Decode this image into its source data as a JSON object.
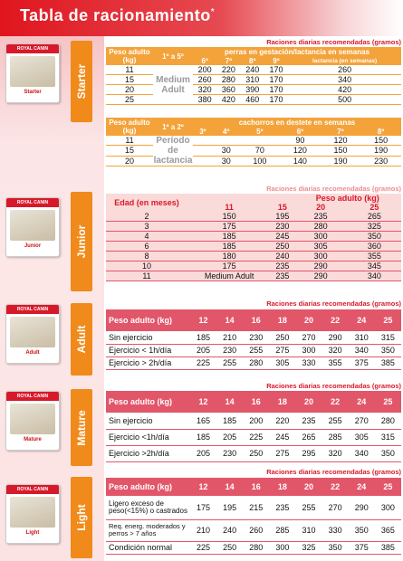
{
  "title": "Tabla de racionamiento",
  "title_mark": "*",
  "section_header": "Raciones diarias recomendadas (gramos)",
  "brand": "ROYAL CANIN",
  "products": [
    {
      "name": "Starter",
      "pack_label": "Starter"
    },
    {
      "name": "Junior",
      "pack_label": "Junior"
    },
    {
      "name": "Adult",
      "pack_label": "Adult"
    },
    {
      "name": "Mature",
      "pack_label": "Mature"
    },
    {
      "name": "Light",
      "pack_label": "Light"
    }
  ],
  "starter_table": {
    "col0": "Peso adulto (kg)",
    "col1": "1º a 5º",
    "group": "perras en gestación/lactancia en semanas",
    "subcols": [
      "6º",
      "7º",
      "8º",
      "9º",
      "lactancia (en semanas)"
    ],
    "middle_text": "Medium Adult",
    "rows": [
      {
        "w": "11",
        "v": [
          "200",
          "220",
          "240",
          "170",
          "260"
        ]
      },
      {
        "w": "15",
        "v": [
          "260",
          "280",
          "310",
          "170",
          "340"
        ]
      },
      {
        "w": "20",
        "v": [
          "320",
          "360",
          "390",
          "170",
          "420"
        ]
      },
      {
        "w": "25",
        "v": [
          "380",
          "420",
          "460",
          "170",
          "500"
        ]
      }
    ]
  },
  "starter_table2": {
    "col0": "Peso adulto (kg)",
    "col1": "1º a 2º",
    "group": "cachorros en destete en semanas",
    "subcols": [
      "3º",
      "4º",
      "5º",
      "6º",
      "7º",
      "8º"
    ],
    "middle_text": "Período de lactancia",
    "rows": [
      {
        "w": "11",
        "v": [
          "",
          "",
          "",
          "90",
          "120",
          "150"
        ]
      },
      {
        "w": "15",
        "v": [
          "",
          "30",
          "70",
          "120",
          "150",
          "190"
        ]
      },
      {
        "w": "20",
        "v": [
          "",
          "30",
          "100",
          "140",
          "190",
          "230"
        ]
      }
    ]
  },
  "junior_table": {
    "col0": "Edad (en meses)",
    "group": "Peso adulto (kg)",
    "subcols": [
      "11",
      "15",
      "20",
      "25"
    ],
    "rows": [
      {
        "a": "2",
        "v": [
          "150",
          "195",
          "235",
          "265"
        ]
      },
      {
        "a": "3",
        "v": [
          "175",
          "230",
          "280",
          "325"
        ]
      },
      {
        "a": "4",
        "v": [
          "185",
          "245",
          "300",
          "350"
        ]
      },
      {
        "a": "6",
        "v": [
          "185",
          "250",
          "305",
          "360"
        ]
      },
      {
        "a": "8",
        "v": [
          "180",
          "240",
          "300",
          "355"
        ]
      },
      {
        "a": "10",
        "v": [
          "175",
          "235",
          "290",
          "345"
        ]
      },
      {
        "a": "11",
        "v": [
          "Medium Adult",
          "235",
          "290",
          "340"
        ]
      }
    ]
  },
  "adult_table": {
    "col0": "Peso adulto (kg)",
    "cols": [
      "12",
      "14",
      "16",
      "18",
      "20",
      "22",
      "24",
      "25"
    ],
    "rows": [
      {
        "label": "Sin ejercicio",
        "v": [
          "185",
          "210",
          "230",
          "250",
          "270",
          "290",
          "310",
          "315"
        ]
      },
      {
        "label": "Ejercicio < 1h/día",
        "v": [
          "205",
          "230",
          "255",
          "275",
          "300",
          "320",
          "340",
          "350"
        ]
      },
      {
        "label": "Ejercicio > 2h/día",
        "v": [
          "225",
          "255",
          "280",
          "305",
          "330",
          "355",
          "375",
          "385"
        ]
      }
    ]
  },
  "mature_table": {
    "col0": "Peso adulto (kg)",
    "cols": [
      "12",
      "14",
      "16",
      "18",
      "20",
      "22",
      "24",
      "25"
    ],
    "rows": [
      {
        "label": "Sin ejercicio",
        "v": [
          "165",
          "185",
          "200",
          "220",
          "235",
          "255",
          "270",
          "280"
        ]
      },
      {
        "label": "Ejercicio <1h/día",
        "v": [
          "185",
          "205",
          "225",
          "245",
          "265",
          "285",
          "305",
          "315"
        ]
      },
      {
        "label": "Ejercicio >2h/día",
        "v": [
          "205",
          "230",
          "250",
          "275",
          "295",
          "320",
          "340",
          "350"
        ]
      }
    ]
  },
  "light_table": {
    "col0": "Peso adulto (kg)",
    "cols": [
      "12",
      "14",
      "16",
      "18",
      "20",
      "22",
      "24",
      "25"
    ],
    "rows": [
      {
        "label": "Ligero exceso de peso(<15%) o castrados",
        "v": [
          "175",
          "195",
          "215",
          "235",
          "255",
          "270",
          "290",
          "300"
        ]
      },
      {
        "label": "Req. energ. moderados y perros > 7 años",
        "v": [
          "210",
          "240",
          "260",
          "285",
          "310",
          "330",
          "350",
          "365"
        ]
      },
      {
        "label": "Condición normal",
        "v": [
          "225",
          "250",
          "280",
          "300",
          "325",
          "350",
          "375",
          "385"
        ]
      }
    ]
  },
  "colors": {
    "red": "#d8192a",
    "orange": "#f3a33a",
    "pink": "#e2566a",
    "tab": "#f08a1a"
  }
}
